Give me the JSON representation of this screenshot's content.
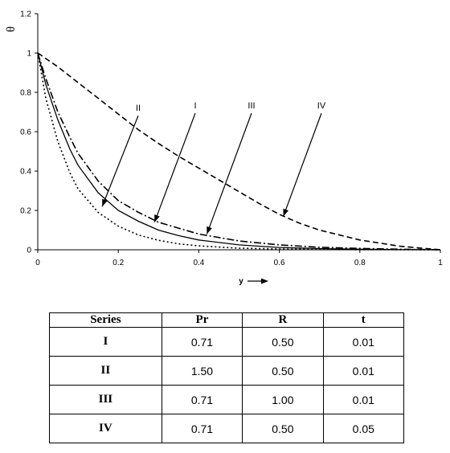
{
  "chart_data": {
    "type": "line",
    "title": "",
    "xlabel": "y",
    "ylabel": "θ",
    "xlim": [
      0,
      1
    ],
    "ylim": [
      0,
      1.2
    ],
    "xticks": [
      "0",
      "0.2",
      "0.4",
      "0.6",
      "0.8",
      "1"
    ],
    "yticks": [
      "0",
      "0.2",
      "0.4",
      "0.6",
      "0.8",
      "1",
      "1.2"
    ],
    "grid": false,
    "legend": "none",
    "series": [
      {
        "name": "I",
        "style": "solid",
        "x": [
          0,
          0.02,
          0.05,
          0.08,
          0.1,
          0.15,
          0.2,
          0.25,
          0.3,
          0.35,
          0.4,
          0.5,
          0.6,
          0.7,
          0.8,
          0.9,
          1.0
        ],
        "y": [
          1.0,
          0.84,
          0.66,
          0.51,
          0.43,
          0.29,
          0.2,
          0.145,
          0.1,
          0.072,
          0.05,
          0.025,
          0.012,
          0.006,
          0.003,
          0.001,
          0.0
        ]
      },
      {
        "name": "II",
        "style": "dotted",
        "x": [
          0,
          0.02,
          0.05,
          0.08,
          0.1,
          0.15,
          0.2,
          0.25,
          0.3,
          0.35,
          0.4,
          0.5,
          0.6,
          0.7,
          0.8,
          1.0
        ],
        "y": [
          1.0,
          0.77,
          0.55,
          0.39,
          0.31,
          0.19,
          0.12,
          0.075,
          0.048,
          0.03,
          0.02,
          0.008,
          0.004,
          0.002,
          0.001,
          0.0
        ]
      },
      {
        "name": "III",
        "style": "dash-dot",
        "x": [
          0,
          0.02,
          0.05,
          0.08,
          0.1,
          0.15,
          0.2,
          0.25,
          0.3,
          0.35,
          0.4,
          0.5,
          0.6,
          0.7,
          0.8,
          0.9,
          1.0
        ],
        "y": [
          1.0,
          0.87,
          0.7,
          0.57,
          0.49,
          0.35,
          0.25,
          0.19,
          0.14,
          0.11,
          0.08,
          0.045,
          0.025,
          0.013,
          0.007,
          0.003,
          0.0
        ]
      },
      {
        "name": "IV",
        "style": "dashed",
        "x": [
          0,
          0.05,
          0.1,
          0.15,
          0.2,
          0.25,
          0.3,
          0.35,
          0.4,
          0.45,
          0.5,
          0.55,
          0.6,
          0.65,
          0.7,
          0.8,
          0.9,
          1.0
        ],
        "y": [
          1.0,
          0.93,
          0.85,
          0.77,
          0.69,
          0.61,
          0.54,
          0.475,
          0.415,
          0.355,
          0.295,
          0.235,
          0.18,
          0.135,
          0.1,
          0.05,
          0.018,
          0.0
        ]
      }
    ],
    "annotations": [
      {
        "label": "II",
        "point": [
          0.16,
          0.22
        ]
      },
      {
        "label": "I",
        "point": [
          0.29,
          0.14
        ]
      },
      {
        "label": "III",
        "point": [
          0.42,
          0.08
        ]
      },
      {
        "label": "IV",
        "point": [
          0.61,
          0.17
        ]
      }
    ]
  },
  "table": {
    "headers": [
      "Series",
      "Pr",
      "R",
      "t"
    ],
    "rows": [
      [
        "I",
        "0.71",
        "0.50",
        "0.01"
      ],
      [
        "II",
        "1.50",
        "0.50",
        "0.01"
      ],
      [
        "III",
        "0.71",
        "1.00",
        "0.01"
      ],
      [
        "IV",
        "0.71",
        "0.50",
        "0.05"
      ]
    ]
  }
}
